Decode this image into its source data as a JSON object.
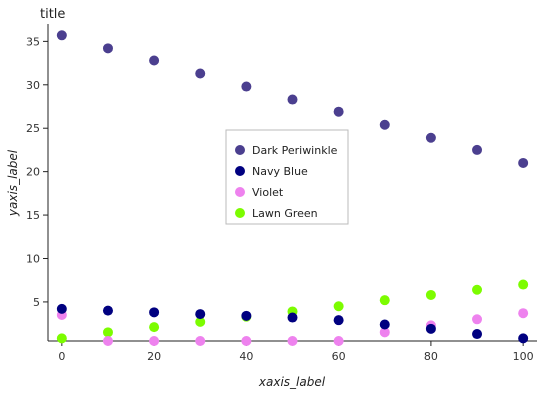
{
  "chart_data": {
    "type": "scatter",
    "title": "title",
    "xlabel": "xaxis_label",
    "ylabel": "yaxis_label",
    "xlim": [
      -3,
      103
    ],
    "ylim": [
      0.5,
      37
    ],
    "x_ticks": [
      0,
      20,
      40,
      60,
      80,
      100
    ],
    "y_ticks": [
      5,
      10,
      15,
      20,
      25,
      30,
      35
    ],
    "grid": false,
    "legend_position": "center",
    "x": [
      0,
      10,
      20,
      30,
      40,
      50,
      60,
      70,
      80,
      90,
      100
    ],
    "series": [
      {
        "name": "Dark Periwinkle",
        "color": "#4B3F8F",
        "values": [
          35.7,
          34.2,
          32.8,
          31.3,
          29.8,
          28.3,
          26.9,
          25.4,
          23.9,
          22.5,
          21.0
        ],
        "z": 1
      },
      {
        "name": "Lawn Green",
        "color": "#7CFC00",
        "values": [
          0.8,
          1.5,
          2.1,
          2.7,
          3.3,
          3.9,
          4.5,
          5.2,
          5.8,
          6.4,
          7.0
        ],
        "z": 2
      },
      {
        "name": "Violet",
        "color": "#EE82EE",
        "values": [
          3.5,
          0.5,
          0.5,
          0.5,
          0.5,
          0.5,
          0.5,
          1.5,
          2.3,
          3.0,
          3.7
        ],
        "z": 3
      },
      {
        "name": "Navy Blue",
        "color": "#000080",
        "values": [
          4.2,
          4.0,
          3.8,
          3.6,
          3.4,
          3.2,
          2.9,
          2.4,
          1.9,
          1.3,
          0.8
        ],
        "z": 4
      }
    ],
    "legend_order": [
      "Dark Periwinkle",
      "Navy Blue",
      "Violet",
      "Lawn Green"
    ]
  }
}
